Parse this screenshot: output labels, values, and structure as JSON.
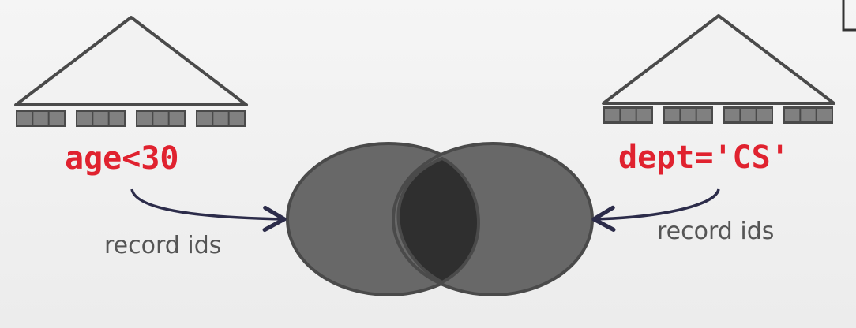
{
  "left_index": {
    "condition": "age<30",
    "edge_label": "record ids"
  },
  "right_index": {
    "condition": "dept='CS'",
    "edge_label": "record ids"
  },
  "colors": {
    "condition_text": "#e0222f",
    "circle_fill": "#686868",
    "intersection_fill": "#2f2f2f",
    "outline": "#4a4a4a",
    "arrow": "#2c2c4a",
    "leaf_fill": "#808080"
  }
}
